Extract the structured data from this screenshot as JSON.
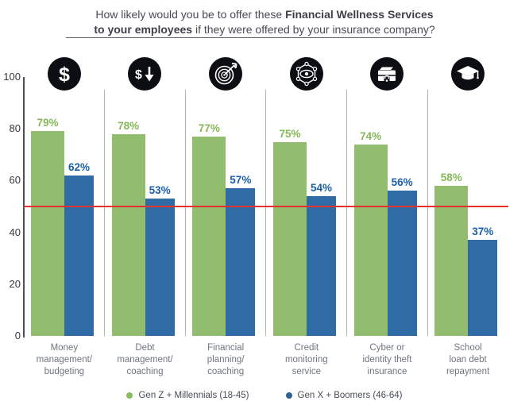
{
  "header": {
    "title_line1_normal": "How likely would you be to offer these ",
    "title_line1_bold": "Financial Wellness Services",
    "title_line2_bold": "to your employees",
    "title_line2_normal": " if they were offered by your insurance company?"
  },
  "chart_data": {
    "type": "bar",
    "title": "How likely would you be to offer these Financial Wellness Services to your employees if they were offered by your insurance company?",
    "categories": [
      "Money\nmanagement/\nbudgeting",
      "Debt\nmanagement/\ncoaching",
      "Financial\nplanning/\ncoaching",
      "Credit\nmonitoring\nservice",
      "Cyber or\nidentity theft\ninsurance",
      "School\nloan debt\nrepayment"
    ],
    "icons": [
      "dollar-icon",
      "dollar-down-icon",
      "target-dart-icon",
      "network-eye-icon",
      "briefcase-lock-icon",
      "graduation-cap-icon"
    ],
    "series": [
      {
        "name": "Gen Z  +  Millennials (18-45)",
        "color": "#93bd6e",
        "label_color": "#85b857",
        "values": [
          79,
          78,
          77,
          75,
          74,
          58
        ]
      },
      {
        "name": "Gen X  +  Boomers (46-64)",
        "color": "#2f6ba4",
        "label_color": "#1c5fa9",
        "values": [
          62,
          53,
          57,
          54,
          56,
          37
        ]
      }
    ],
    "value_suffix": "%",
    "ylim": [
      0,
      100
    ],
    "yticks": [
      100,
      80,
      60,
      40,
      20,
      0
    ],
    "reference_line": {
      "value": 50,
      "color": "#e5312b"
    },
    "grid": false,
    "legend_position": "bottom"
  },
  "legend": {
    "items": [
      {
        "label": "Gen Z  +  Millennials (18-45)",
        "color": "#8cba5e"
      },
      {
        "label": "Gen X  +  Boomers (46-64)",
        "color": "#2d628f"
      }
    ]
  }
}
